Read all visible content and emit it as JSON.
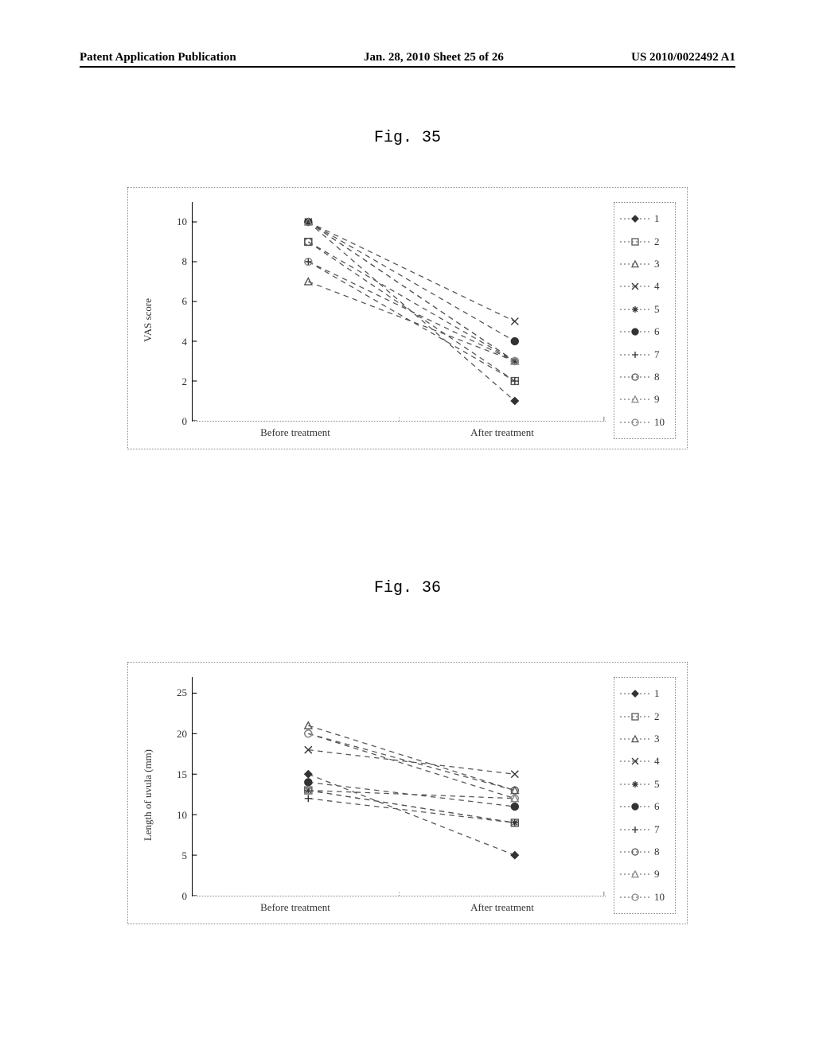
{
  "header": {
    "left": "Patent Application Publication",
    "mid": "Jan. 28, 2010  Sheet 25 of 26",
    "right": "US 2010/0022492 A1"
  },
  "fig35_label": "Fig. 35",
  "fig36_label": "Fig. 36",
  "legend_labels": [
    "1",
    "2",
    "3",
    "4",
    "5",
    "6",
    "7",
    "8",
    "9",
    "10"
  ],
  "markers": [
    {
      "type": "diamond",
      "fill": "#333333",
      "stroke": "#333333"
    },
    {
      "type": "square",
      "fill": "none",
      "stroke": "#555555"
    },
    {
      "type": "triangle",
      "fill": "none",
      "stroke": "#555555"
    },
    {
      "type": "x",
      "fill": "none",
      "stroke": "#333333"
    },
    {
      "type": "asterisk",
      "fill": "none",
      "stroke": "#333333"
    },
    {
      "type": "circle",
      "fill": "#333333",
      "stroke": "#333333"
    },
    {
      "type": "plus",
      "fill": "none",
      "stroke": "#333333"
    },
    {
      "type": "circle",
      "fill": "none",
      "stroke": "#555555"
    },
    {
      "type": "triangle",
      "fill": "none",
      "stroke": "#888888"
    },
    {
      "type": "circle",
      "fill": "none",
      "stroke": "#888888"
    }
  ],
  "line_color": "#555555",
  "line_dash": "6,5",
  "axis_dot_color": "#888888",
  "background_color": "#ffffff",
  "chart35": {
    "type": "line",
    "ylabel": "VAS score",
    "ylim": [
      0,
      11
    ],
    "yticks": [
      0,
      2,
      4,
      6,
      8,
      10
    ],
    "xcategories": [
      "Before treatment",
      "After treatment"
    ],
    "x_positions": [
      0.28,
      0.78
    ],
    "series": [
      {
        "before": 10.0,
        "after": 1.0
      },
      {
        "before": 9.0,
        "after": 2.0
      },
      {
        "before": 7.0,
        "after": 3.0
      },
      {
        "before": 10.0,
        "after": 5.0
      },
      {
        "before": 10.0,
        "after": 3.0
      },
      {
        "before": 10.0,
        "after": 4.0
      },
      {
        "before": 8.0,
        "after": 2.0
      },
      {
        "before": 9.0,
        "after": 3.0
      },
      {
        "before": 10.0,
        "after": 3.0
      },
      {
        "before": 8.0,
        "after": 3.0
      }
    ]
  },
  "chart36": {
    "type": "line",
    "ylabel": "Length of uvula (mm)",
    "ylim": [
      0,
      27
    ],
    "yticks": [
      0,
      5,
      10,
      15,
      20,
      25
    ],
    "xcategories": [
      "Before treatment",
      "After treatment"
    ],
    "x_positions": [
      0.28,
      0.78
    ],
    "series": [
      {
        "before": 15.0,
        "after": 5.0
      },
      {
        "before": 13.0,
        "after": 9.0
      },
      {
        "before": 21.0,
        "after": 13.0
      },
      {
        "before": 18.0,
        "after": 15.0
      },
      {
        "before": 13.0,
        "after": 9.0
      },
      {
        "before": 14.0,
        "after": 11.0
      },
      {
        "before": 12.0,
        "after": 9.0
      },
      {
        "before": 20.0,
        "after": 13.0
      },
      {
        "before": 13.0,
        "after": 12.0
      },
      {
        "before": 20.0,
        "after": 12.0
      }
    ]
  }
}
